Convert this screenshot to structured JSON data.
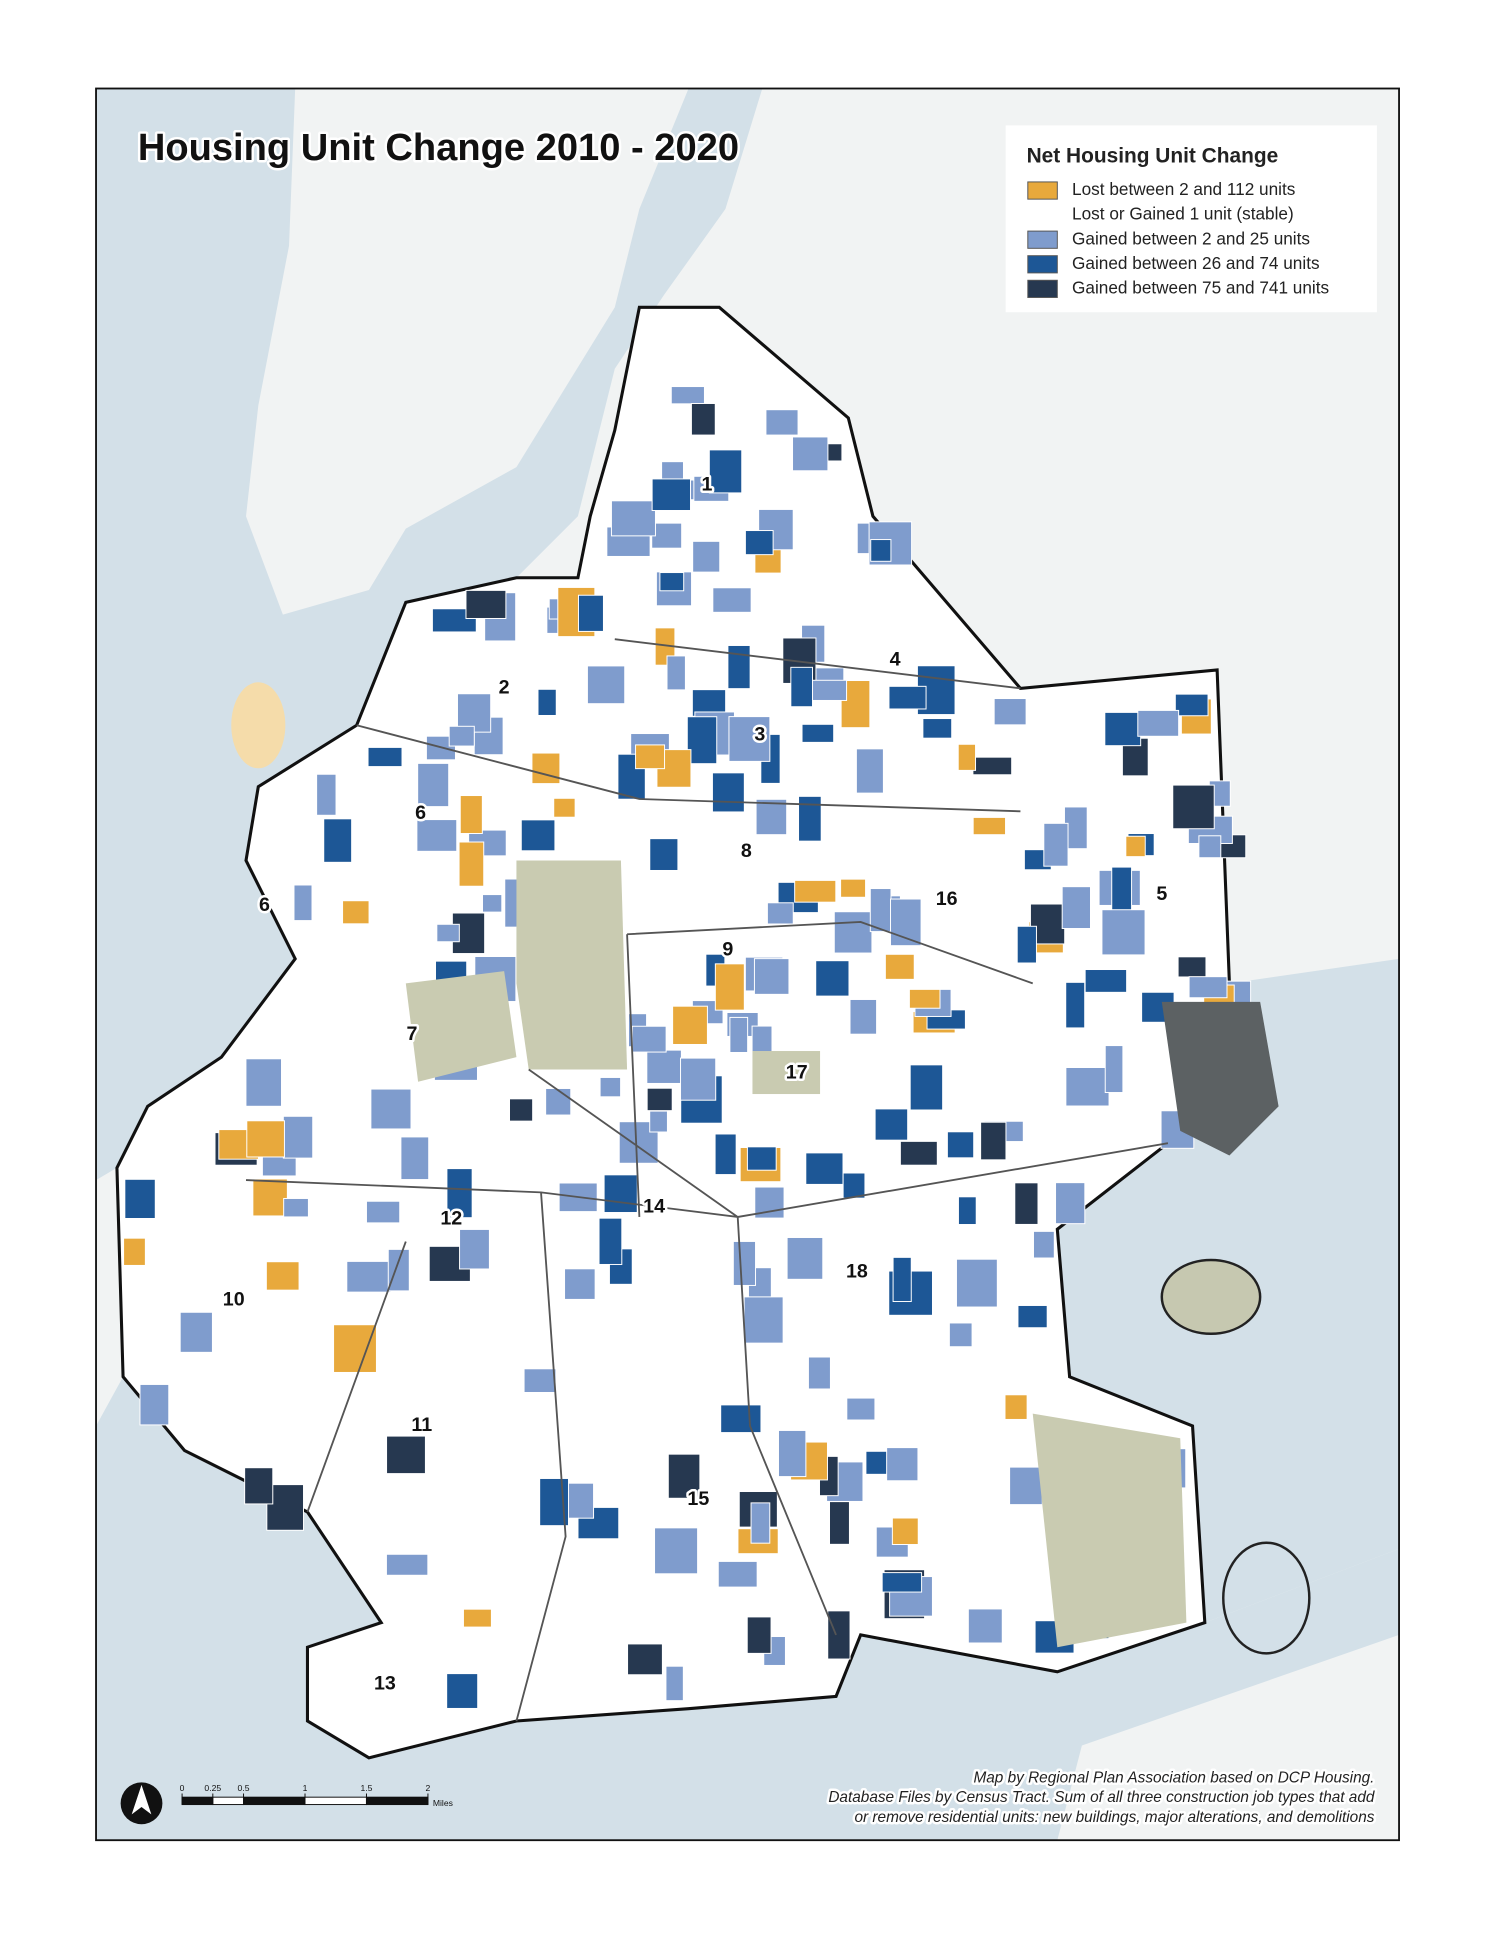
{
  "title": "Housing Unit Change 2010 - 2020",
  "legend": {
    "title": "Net Housing Unit Change",
    "items": [
      {
        "label": "Lost between 2 and 112 units",
        "color": "#e8a93c"
      },
      {
        "label": "Lost or Gained 1 unit (stable)",
        "color": "#ffffff"
      },
      {
        "label": "Gained between 2 and 25 units",
        "color": "#7f9ccd"
      },
      {
        "label": "Gained between 26 and 74 units",
        "color": "#1d5796"
      },
      {
        "label": "Gained between 75 and 741 units",
        "color": "#263850"
      }
    ]
  },
  "district_labels": [
    "1",
    "2",
    "3",
    "4",
    "5",
    "6",
    "6",
    "7",
    "8",
    "9",
    "10",
    "11",
    "12",
    "13",
    "14",
    "15",
    "16",
    "17",
    "18"
  ],
  "scale_bar": {
    "ticks": [
      0,
      0.25,
      0.5,
      1,
      1.5,
      2
    ],
    "unit": "Miles"
  },
  "credits": [
    "Map by Regional Plan Association based on DCP Housing.",
    "Database Files by Census Tract. Sum of all three construction job types that add",
    "or remove residential units: new buildings, major alterations, and demolitions"
  ]
}
